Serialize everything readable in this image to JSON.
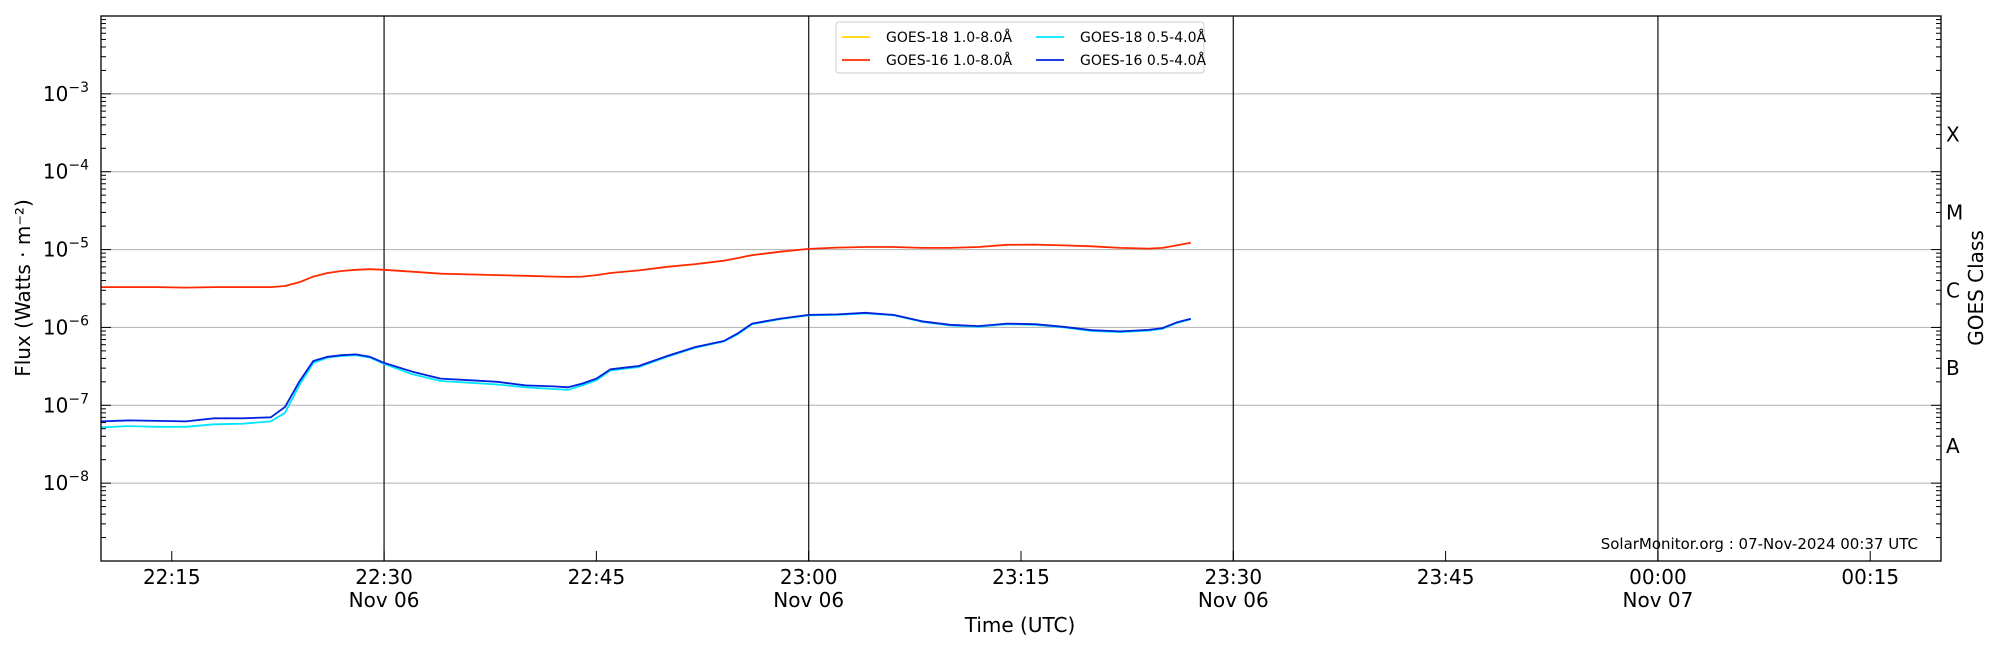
{
  "chart_data": {
    "type": "line",
    "title": "",
    "xlabel": "Time (UTC)",
    "ylabel": "Flux (Watts · m⁻²)",
    "y2label": "GOES Class",
    "y_scale": "log",
    "ylim": [
      1e-09,
      0.01
    ],
    "xlim": [
      "2024-11-06 22:10",
      "2024-11-07 00:20"
    ],
    "grid": "horizontal at decades",
    "legend_position": "top-center",
    "x_ticks": [
      {
        "time": "22:15",
        "date": ""
      },
      {
        "time": "22:30",
        "date": "Nov 06"
      },
      {
        "time": "22:45",
        "date": ""
      },
      {
        "time": "23:00",
        "date": "Nov 06"
      },
      {
        "time": "23:15",
        "date": ""
      },
      {
        "time": "23:30",
        "date": "Nov 06"
      },
      {
        "time": "23:45",
        "date": ""
      },
      {
        "time": "00:00",
        "date": "Nov 07"
      },
      {
        "time": "00:15",
        "date": ""
      }
    ],
    "y_ticks": [
      {
        "value": 1e-08,
        "base": "10",
        "exp": "−8"
      },
      {
        "value": 1e-07,
        "base": "10",
        "exp": "−7"
      },
      {
        "value": 1e-06,
        "base": "10",
        "exp": "−6"
      },
      {
        "value": 1e-05,
        "base": "10",
        "exp": "−5"
      },
      {
        "value": 0.0001,
        "base": "10",
        "exp": "−4"
      },
      {
        "value": 0.001,
        "base": "10",
        "exp": "−3"
      }
    ],
    "goes_classes": [
      {
        "label": "A",
        "value": 3e-08
      },
      {
        "label": "B",
        "value": 3e-07
      },
      {
        "label": "C",
        "value": 3e-06
      },
      {
        "label": "M",
        "value": 3e-05
      },
      {
        "label": "X",
        "value": 0.0003
      }
    ],
    "vertical_lines": [
      "2024-11-06 22:30",
      "2024-11-06 23:00",
      "2024-11-06 23:30",
      "2024-11-07 00:00"
    ],
    "series": [
      {
        "name": "GOES-18 1.0-8.0Å",
        "color": "#ffd700",
        "x": [],
        "values": []
      },
      {
        "name": "GOES-16 1.0-8.0Å",
        "color": "#ff2a00",
        "x": [
          "2024-11-06 22:10",
          "2024-11-06 22:12",
          "2024-11-06 22:14",
          "2024-11-06 22:16",
          "2024-11-06 22:18",
          "2024-11-06 22:20",
          "2024-11-06 22:22",
          "2024-11-06 22:23",
          "2024-11-06 22:24",
          "2024-11-06 22:25",
          "2024-11-06 22:26",
          "2024-11-06 22:27",
          "2024-11-06 22:28",
          "2024-11-06 22:29",
          "2024-11-06 22:30",
          "2024-11-06 22:32",
          "2024-11-06 22:34",
          "2024-11-06 22:36",
          "2024-11-06 22:38",
          "2024-11-06 22:40",
          "2024-11-06 22:42",
          "2024-11-06 22:43",
          "2024-11-06 22:44",
          "2024-11-06 22:45",
          "2024-11-06 22:46",
          "2024-11-06 22:48",
          "2024-11-06 22:50",
          "2024-11-06 22:52",
          "2024-11-06 22:54",
          "2024-11-06 22:55",
          "2024-11-06 22:56",
          "2024-11-06 22:58",
          "2024-11-06 23:00",
          "2024-11-06 23:02",
          "2024-11-06 23:04",
          "2024-11-06 23:06",
          "2024-11-06 23:08",
          "2024-11-06 23:10",
          "2024-11-06 23:12",
          "2024-11-06 23:14",
          "2024-11-06 23:16",
          "2024-11-06 23:18",
          "2024-11-06 23:20",
          "2024-11-06 23:22",
          "2024-11-06 23:24",
          "2024-11-06 23:25",
          "2024-11-06 23:26",
          "2024-11-06 23:27"
        ],
        "values": [
          3.3e-06,
          3.3e-06,
          3.3e-06,
          3.25e-06,
          3.3e-06,
          3.3e-06,
          3.3e-06,
          3.4e-06,
          3.8e-06,
          4.5e-06,
          5e-06,
          5.3e-06,
          5.5e-06,
          5.6e-06,
          5.5e-06,
          5.2e-06,
          4.9e-06,
          4.8e-06,
          4.7e-06,
          4.6e-06,
          4.5e-06,
          4.45e-06,
          4.5e-06,
          4.7e-06,
          5e-06,
          5.4e-06,
          6e-06,
          6.5e-06,
          7.2e-06,
          7.8e-06,
          8.5e-06,
          9.4e-06,
          1.02e-05,
          1.06e-05,
          1.08e-05,
          1.08e-05,
          1.05e-05,
          1.05e-05,
          1.08e-05,
          1.15e-05,
          1.16e-05,
          1.13e-05,
          1.1e-05,
          1.05e-05,
          1.03e-05,
          1.05e-05,
          1.13e-05,
          1.22e-05
        ]
      },
      {
        "name": "GOES-18 0.5-4.0Å",
        "color": "#00e5ff",
        "x": [
          "2024-11-06 22:10",
          "2024-11-06 22:12",
          "2024-11-06 22:14",
          "2024-11-06 22:16",
          "2024-11-06 22:18",
          "2024-11-06 22:20",
          "2024-11-06 22:22",
          "2024-11-06 22:23",
          "2024-11-06 22:24",
          "2024-11-06 22:25",
          "2024-11-06 22:26",
          "2024-11-06 22:27",
          "2024-11-06 22:28",
          "2024-11-06 22:29",
          "2024-11-06 22:30",
          "2024-11-06 22:32",
          "2024-11-06 22:34",
          "2024-11-06 22:36",
          "2024-11-06 22:38",
          "2024-11-06 22:40",
          "2024-11-06 22:42",
          "2024-11-06 22:43",
          "2024-11-06 22:44",
          "2024-11-06 22:45",
          "2024-11-06 22:46",
          "2024-11-06 22:48",
          "2024-11-06 22:50",
          "2024-11-06 22:52",
          "2024-11-06 22:54",
          "2024-11-06 22:55",
          "2024-11-06 22:56",
          "2024-11-06 22:58",
          "2024-11-06 23:00",
          "2024-11-06 23:02",
          "2024-11-06 23:04",
          "2024-11-06 23:06",
          "2024-11-06 23:08",
          "2024-11-06 23:10",
          "2024-11-06 23:12",
          "2024-11-06 23:14",
          "2024-11-06 23:16",
          "2024-11-06 23:18",
          "2024-11-06 23:20",
          "2024-11-06 23:22",
          "2024-11-06 23:24",
          "2024-11-06 23:25",
          "2024-11-06 23:26",
          "2024-11-06 23:27"
        ],
        "values": [
          5.2e-08,
          5.4e-08,
          5.3e-08,
          5.3e-08,
          5.7e-08,
          5.8e-08,
          6.2e-08,
          8e-08,
          1.8e-07,
          3.5e-07,
          4.1e-07,
          4.3e-07,
          4.4e-07,
          4.1e-07,
          3.4e-07,
          2.5e-07,
          2.05e-07,
          1.95e-07,
          1.85e-07,
          1.7e-07,
          1.62e-07,
          1.58e-07,
          1.8e-07,
          2.1e-07,
          2.8e-07,
          3.1e-07,
          4.2e-07,
          5.5e-07,
          6.6e-07,
          8.2e-07,
          1.1e-06,
          1.28e-06,
          1.43e-06,
          1.45e-06,
          1.52e-06,
          1.43e-06,
          1.18e-06,
          1.06e-06,
          1.02e-06,
          1.1e-06,
          1.08e-06,
          1e-06,
          9e-07,
          8.7e-07,
          9.1e-07,
          9.6e-07,
          1.14e-06,
          1.27e-06
        ]
      },
      {
        "name": "GOES-16 0.5-4.0Å",
        "color": "#0022dd",
        "x": [
          "2024-11-06 22:10",
          "2024-11-06 22:12",
          "2024-11-06 22:14",
          "2024-11-06 22:16",
          "2024-11-06 22:18",
          "2024-11-06 22:20",
          "2024-11-06 22:22",
          "2024-11-06 22:23",
          "2024-11-06 22:24",
          "2024-11-06 22:25",
          "2024-11-06 22:26",
          "2024-11-06 22:27",
          "2024-11-06 22:28",
          "2024-11-06 22:29",
          "2024-11-06 22:30",
          "2024-11-06 22:32",
          "2024-11-06 22:34",
          "2024-11-06 22:36",
          "2024-11-06 22:38",
          "2024-11-06 22:40",
          "2024-11-06 22:42",
          "2024-11-06 22:43",
          "2024-11-06 22:44",
          "2024-11-06 22:45",
          "2024-11-06 22:46",
          "2024-11-06 22:48",
          "2024-11-06 22:50",
          "2024-11-06 22:52",
          "2024-11-06 22:54",
          "2024-11-06 22:55",
          "2024-11-06 22:56",
          "2024-11-06 22:58",
          "2024-11-06 23:00",
          "2024-11-06 23:02",
          "2024-11-06 23:04",
          "2024-11-06 23:06",
          "2024-11-06 23:08",
          "2024-11-06 23:10",
          "2024-11-06 23:12",
          "2024-11-06 23:14",
          "2024-11-06 23:16",
          "2024-11-06 23:18",
          "2024-11-06 23:20",
          "2024-11-06 23:22",
          "2024-11-06 23:24",
          "2024-11-06 23:25",
          "2024-11-06 23:26",
          "2024-11-06 23:27"
        ],
        "values": [
          6.2e-08,
          6.4e-08,
          6.3e-08,
          6.2e-08,
          6.8e-08,
          6.8e-08,
          7e-08,
          9.5e-08,
          2e-07,
          3.7e-07,
          4.2e-07,
          4.4e-07,
          4.5e-07,
          4.2e-07,
          3.5e-07,
          2.7e-07,
          2.2e-07,
          2.1e-07,
          2e-07,
          1.8e-07,
          1.75e-07,
          1.7e-07,
          1.9e-07,
          2.2e-07,
          2.9e-07,
          3.2e-07,
          4.3e-07,
          5.6e-07,
          6.7e-07,
          8.4e-07,
          1.12e-06,
          1.3e-06,
          1.45e-06,
          1.47e-06,
          1.54e-06,
          1.45e-06,
          1.2e-06,
          1.08e-06,
          1.04e-06,
          1.12e-06,
          1.1e-06,
          1.02e-06,
          9.2e-07,
          8.9e-07,
          9.3e-07,
          9.8e-07,
          1.16e-06,
          1.29e-06
        ]
      }
    ],
    "annotation": "SolarMonitor.org : 07-Nov-2024 00:37 UTC"
  }
}
